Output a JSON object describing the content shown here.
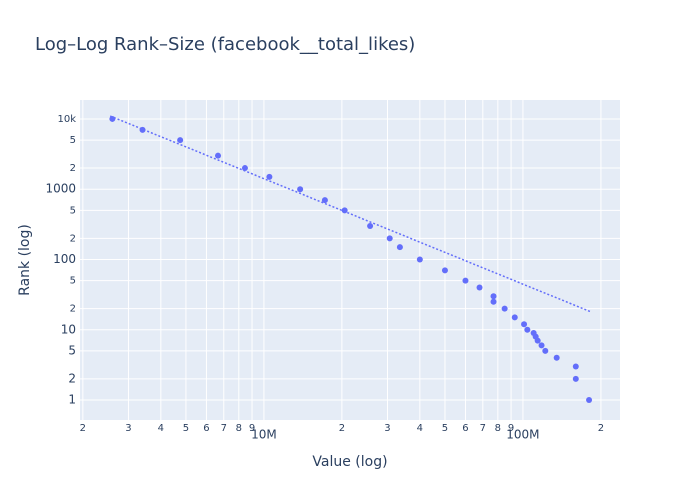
{
  "chart_data": {
    "type": "scatter",
    "title": "Log–Log Rank–Size (facebook__total_likes)",
    "x_label": "Value (log)",
    "y_label": "Rank (log)",
    "log_x": true,
    "log_y": true,
    "grid": true,
    "xlim": [
      1950000,
      237000000
    ],
    "ylim": [
      0.52,
      18600
    ],
    "xticks": [
      {
        "value": 2000000,
        "label": "2"
      },
      {
        "value": 3000000,
        "label": "3"
      },
      {
        "value": 4000000,
        "label": "4"
      },
      {
        "value": 5000000,
        "label": "5"
      },
      {
        "value": 6000000,
        "label": "6"
      },
      {
        "value": 7000000,
        "label": "7"
      },
      {
        "value": 8000000,
        "label": "8"
      },
      {
        "value": 9000000,
        "label": "9"
      },
      {
        "value": 10000000,
        "label": "10M"
      },
      {
        "value": 20000000,
        "label": "2"
      },
      {
        "value": 30000000,
        "label": "3"
      },
      {
        "value": 40000000,
        "label": "4"
      },
      {
        "value": 50000000,
        "label": "5"
      },
      {
        "value": 60000000,
        "label": "6"
      },
      {
        "value": 70000000,
        "label": "7"
      },
      {
        "value": 80000000,
        "label": "8"
      },
      {
        "value": 90000000,
        "label": "9"
      },
      {
        "value": 100000000,
        "label": "100M"
      },
      {
        "value": 200000000,
        "label": "2"
      }
    ],
    "yticks": [
      1,
      2,
      5,
      10,
      {
        "value": 20,
        "label": "2"
      },
      {
        "value": 50,
        "label": "5"
      },
      100,
      {
        "value": 200,
        "label": "2"
      },
      {
        "value": 500,
        "label": "5"
      },
      1000,
      {
        "value": 2000,
        "label": "2"
      },
      {
        "value": 5000,
        "label": "5"
      },
      {
        "value": 10000,
        "label": "10k"
      }
    ],
    "series": [
      {
        "color": "#636efa",
        "mode": "markers",
        "x": [
          2600000,
          3400000,
          4750000,
          6650000,
          8450000,
          10500000,
          13800000,
          17200000,
          20500000,
          25700000,
          30600000,
          33500000,
          40000000,
          50000000,
          60000000,
          68000000,
          77000000,
          77000000,
          85000000,
          93000000,
          101000000,
          104000000,
          110000000,
          112000000,
          114000000,
          118000000,
          122000000,
          135000000,
          160000000,
          160000000,
          180000000
        ],
        "values": [
          10000,
          7000,
          5000,
          3000,
          2000,
          1500,
          1000,
          700,
          500,
          300,
          200,
          150,
          100,
          70,
          50,
          40,
          30,
          25,
          20,
          15,
          12,
          10,
          9,
          8,
          7,
          6,
          5,
          4,
          3,
          2,
          1
        ]
      },
      {
        "color": "#636efa",
        "mode": "dotted-line",
        "x": [
          2550000,
          183000000
        ],
        "values": [
          11000,
          18
        ]
      }
    ]
  }
}
